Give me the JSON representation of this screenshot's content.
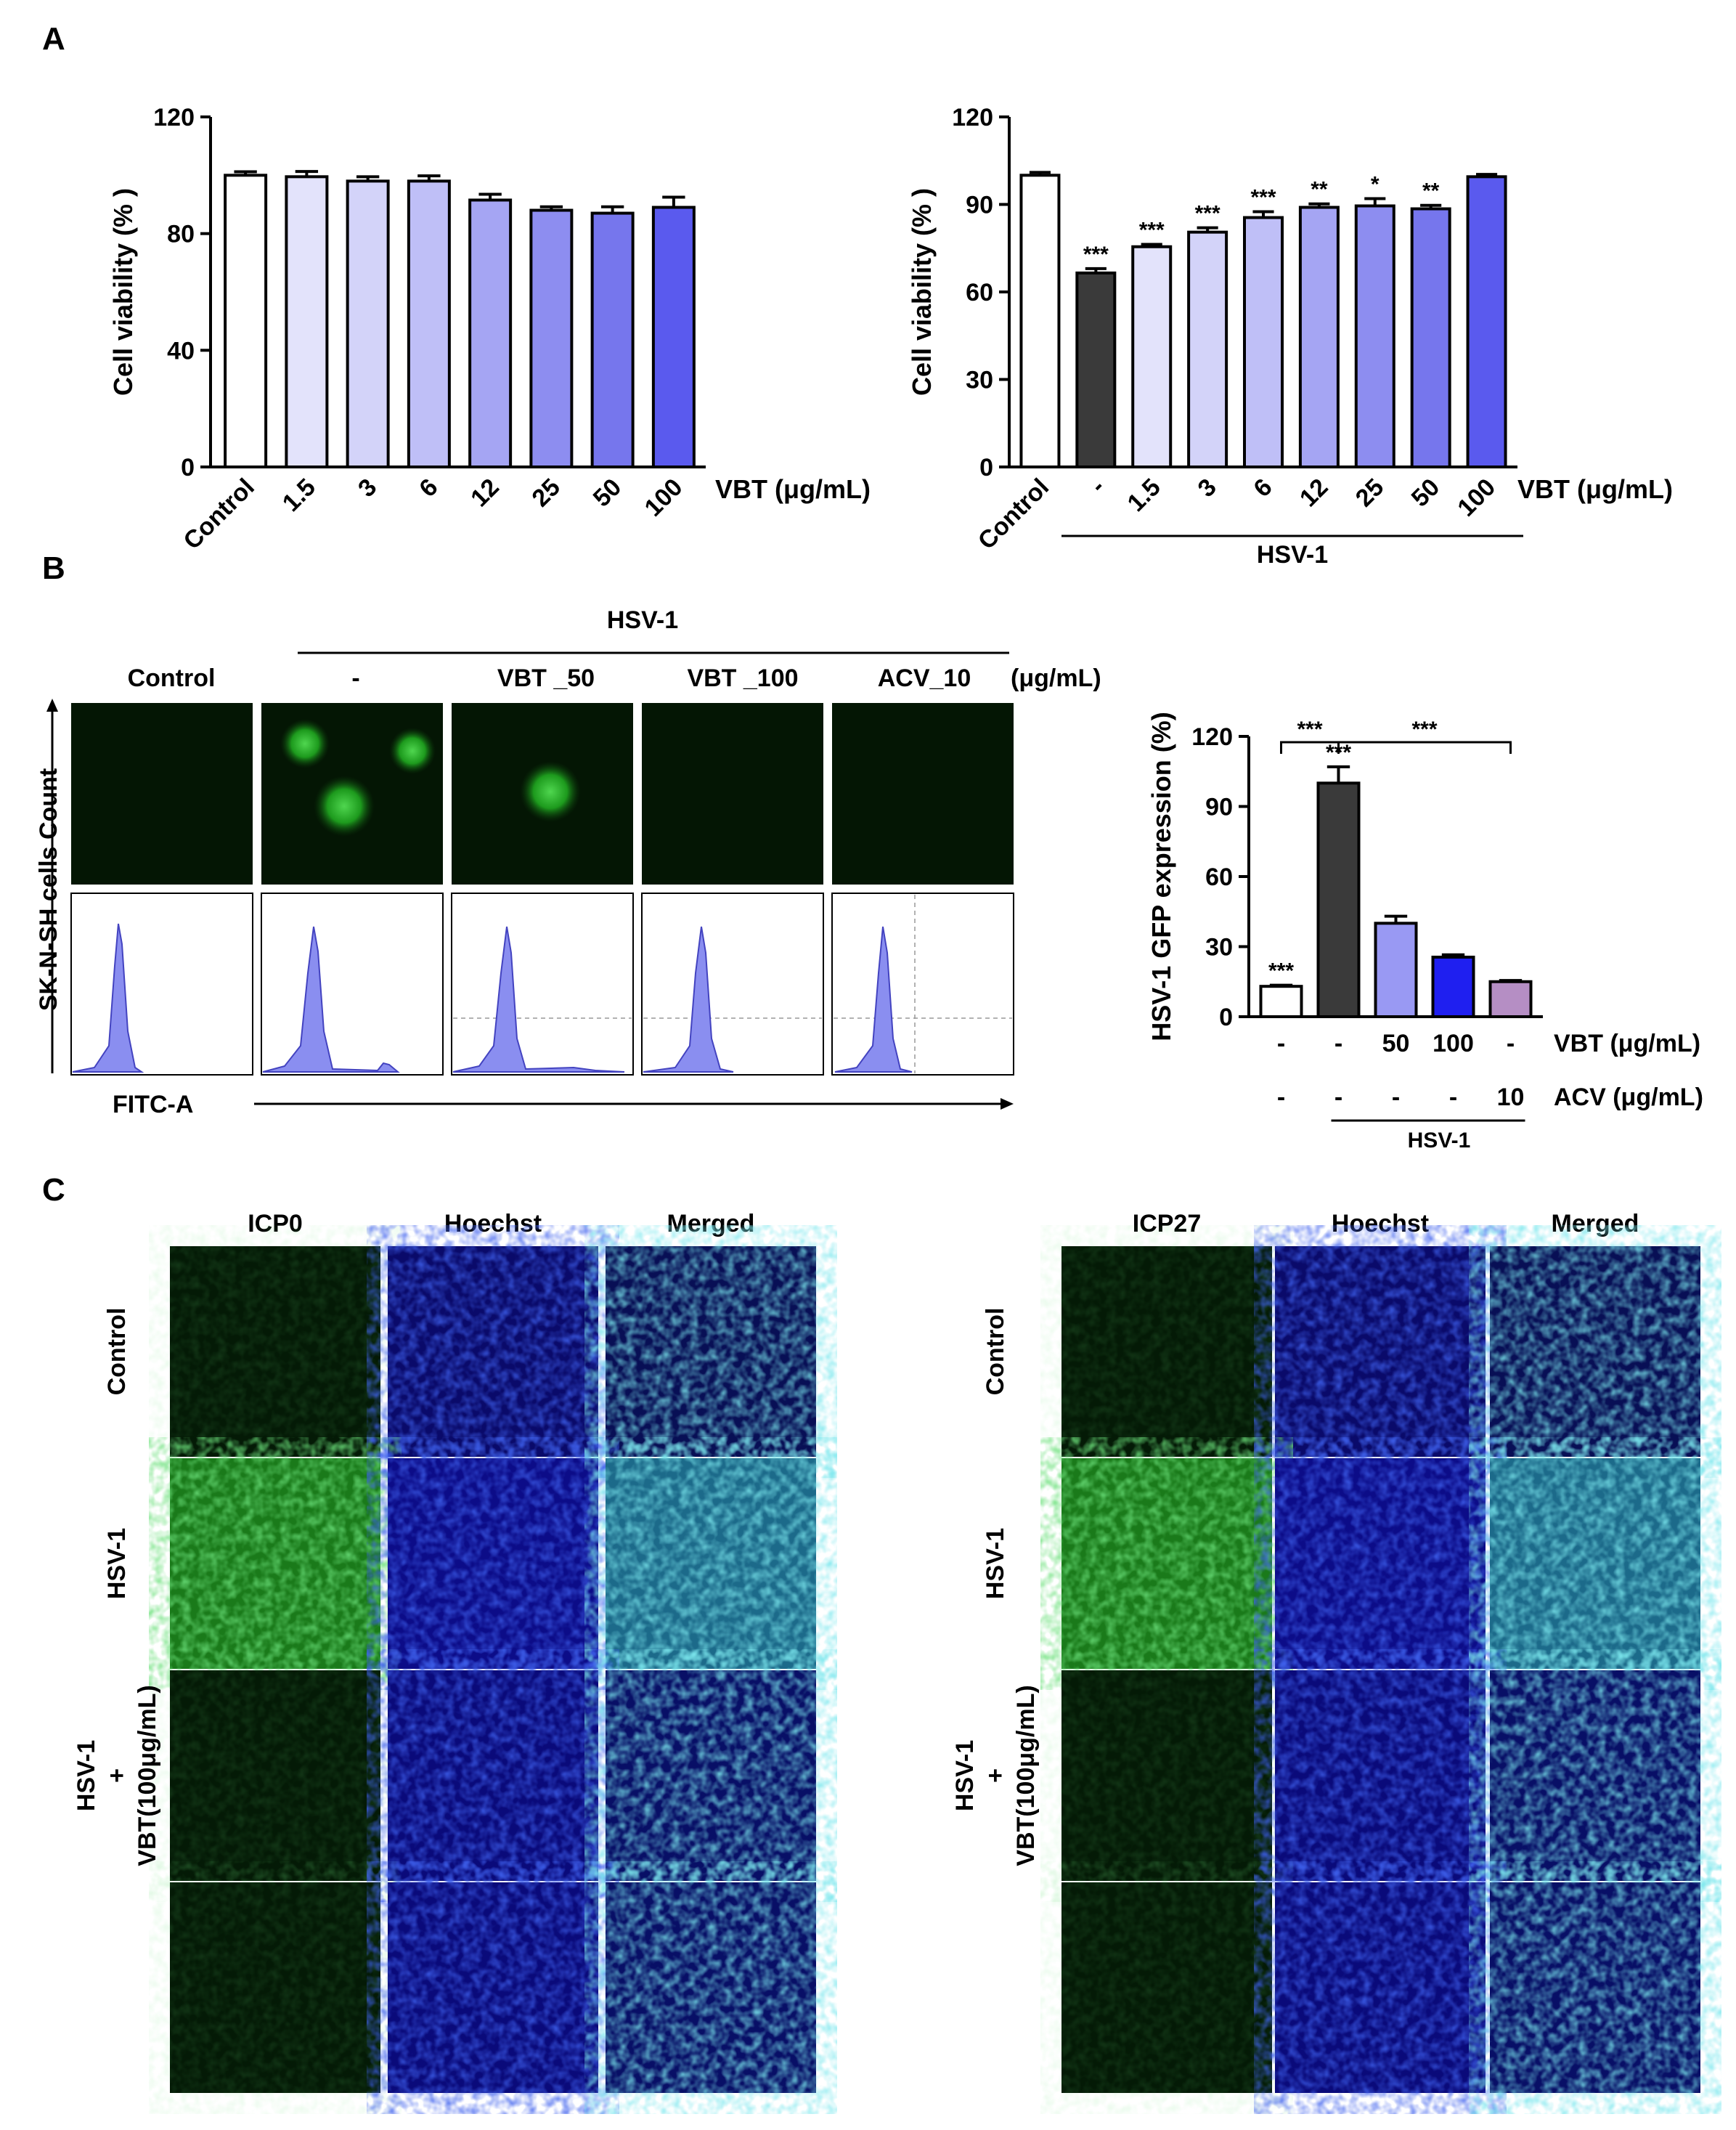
{
  "panels": {
    "A": {
      "letter": "A",
      "chart_data": [
        {
          "type": "bar",
          "ylabel": "Cell viability (% )",
          "xlabel": "VBT (μg/mL)",
          "ylim": [
            0,
            120
          ],
          "yticks": [
            "0",
            "40",
            "80",
            "120"
          ],
          "categories": [
            "Control",
            "1.5",
            "3",
            "6",
            "12",
            "25",
            "50",
            "100"
          ],
          "values": [
            100,
            99.5,
            98,
            98,
            91.5,
            88,
            87,
            89
          ],
          "errors": [
            1.2,
            1.8,
            1.5,
            1.8,
            2,
            1.2,
            2.2,
            3.5
          ],
          "colors": [
            "#ffffff",
            "#e3e3fb",
            "#d3d3f9",
            "#bfbff7",
            "#a5a5f3",
            "#8d8df0",
            "#7676ed",
            "#5a5aee"
          ],
          "significance": []
        },
        {
          "type": "bar",
          "ylabel": "Cell viability (% )",
          "xlabel": "VBT (μg/mL)",
          "group_label": "HSV-1",
          "ylim": [
            0,
            120
          ],
          "yticks": [
            "0",
            "30",
            "60",
            "90",
            "120"
          ],
          "categories": [
            "Control",
            "-",
            "1.5",
            "3",
            "6",
            "12",
            "25",
            "50",
            "100"
          ],
          "values": [
            100,
            66.5,
            75.5,
            80.5,
            85.5,
            89,
            89.5,
            88.5,
            99.5
          ],
          "errors": [
            1,
            1.5,
            0.8,
            1.5,
            2,
            1.2,
            2.5,
            1.2,
            0.8
          ],
          "colors": [
            "#ffffff",
            "#3a3a3a",
            "#e3e3fb",
            "#d3d3f9",
            "#bfbff7",
            "#a5a5f3",
            "#8d8df0",
            "#7676ed",
            "#5a5aee"
          ],
          "significance": [
            "",
            "***",
            "***",
            "***",
            "***",
            "**",
            "*",
            "**",
            ""
          ]
        }
      ]
    },
    "B": {
      "letter": "B",
      "hsv_label": "HSV-1",
      "unit_label": "(μg/mL)",
      "columns": [
        "Control",
        "-",
        "VBT _50",
        "VBT _100",
        "ACV_10"
      ],
      "y_axis_label": "SK-N-SH cells Count",
      "x_axis_label": "FITC-A",
      "chart_data": {
        "type": "bar",
        "ylabel": "HSV-1 GFP expression (%)",
        "ylim": [
          0,
          120
        ],
        "yticks": [
          "0",
          "30",
          "60",
          "90",
          "120"
        ],
        "values": [
          13,
          100,
          40,
          25.5,
          15
        ],
        "errors": [
          0.5,
          7,
          3,
          1,
          0.5
        ],
        "colors": [
          "#ffffff",
          "#3a3a3a",
          "#9999f3",
          "#1f1ff0",
          "#b58ec4"
        ],
        "rows": [
          {
            "label": "VBT (μg/mL)",
            "cells": [
              "-",
              "-",
              "50",
              "100",
              "-"
            ]
          },
          {
            "label": "ACV (μg/mL)",
            "cells": [
              "-",
              "-",
              "-",
              "-",
              "10"
            ]
          }
        ],
        "group_label": "HSV-1",
        "significance": [
          "***",
          "***"
        ]
      }
    },
    "C": {
      "letter": "C",
      "left_headers": [
        "ICP0",
        "Hoechst",
        "Merged"
      ],
      "right_headers": [
        "ICP27",
        "Hoechst",
        "Merged"
      ],
      "row_labels": [
        {
          "lines": [
            "Control"
          ]
        },
        {
          "lines": [
            "HSV-1"
          ]
        },
        {
          "lines": [
            "HSV-1",
            "+",
            "VBT(100μg/mL)"
          ]
        }
      ]
    }
  }
}
